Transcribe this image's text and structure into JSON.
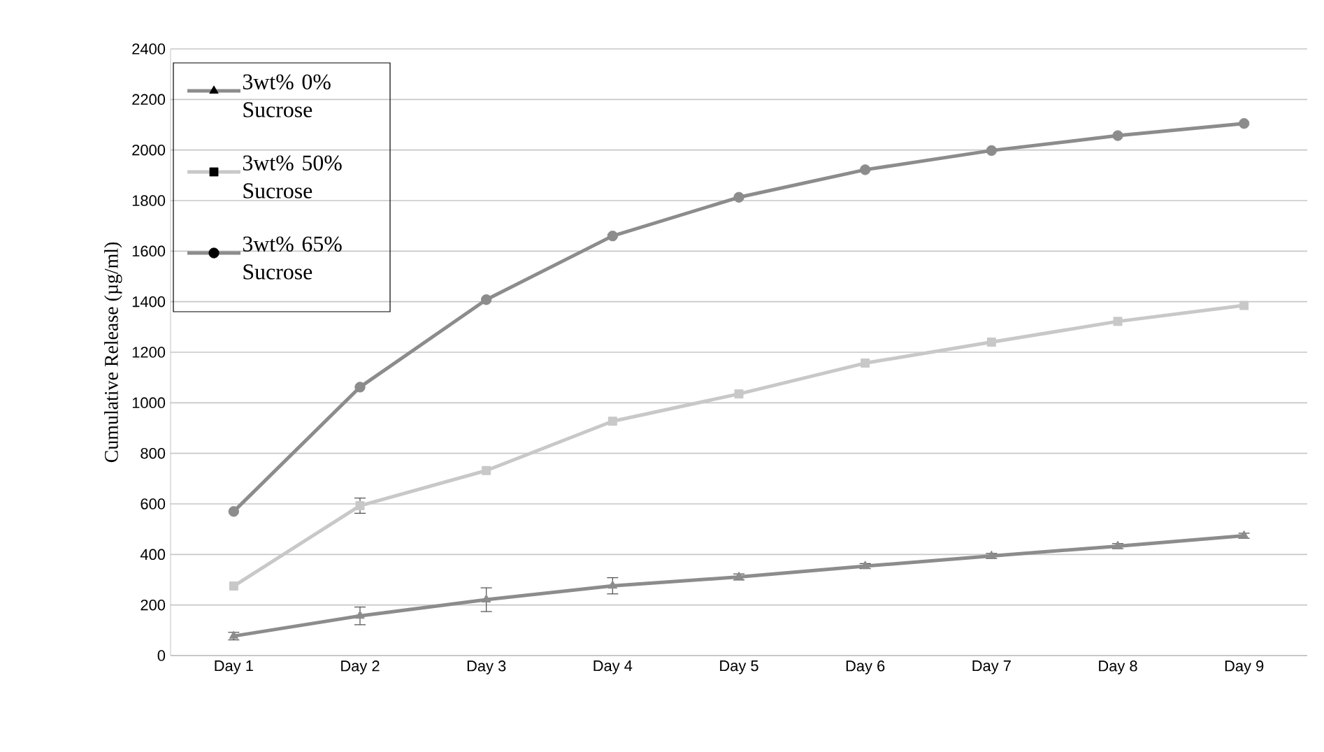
{
  "chart_data": {
    "type": "line",
    "ylabel": "Cumulative Release (µg/ml)",
    "categories": [
      "Day 1",
      "Day 2",
      "Day 3",
      "Day 4",
      "Day 5",
      "Day 6",
      "Day 7",
      "Day 8",
      "Day 9"
    ],
    "series": [
      {
        "name": "3wt% 0% Sucrose",
        "color": "#8c8c8c",
        "marker": "triangle",
        "values": [
          77,
          157,
          221,
          276,
          311,
          354,
          394,
          433,
          474
        ],
        "errors": [
          15,
          35,
          47,
          32,
          12,
          10,
          10,
          10,
          10
        ]
      },
      {
        "name": "3wt% 50% Sucrose",
        "color": "#c8c8c8",
        "marker": "square",
        "values": [
          275,
          593,
          732,
          927,
          1035,
          1157,
          1240,
          1322,
          1385
        ],
        "errors": [
          null,
          30,
          null,
          null,
          null,
          null,
          null,
          null,
          null
        ]
      },
      {
        "name": "3wt% 65% Sucrose",
        "color": "#8c8c8c",
        "marker": "circle",
        "values": [
          570,
          1062,
          1408,
          1660,
          1813,
          1922,
          1998,
          2057,
          2105
        ]
      }
    ],
    "ylim": [
      0,
      2400
    ],
    "yticks": [
      0,
      200,
      400,
      600,
      800,
      1000,
      1200,
      1400,
      1600,
      1800,
      2000,
      2200,
      2400
    ],
    "grid": "y",
    "legend": "top left",
    "line_style": "solid"
  }
}
